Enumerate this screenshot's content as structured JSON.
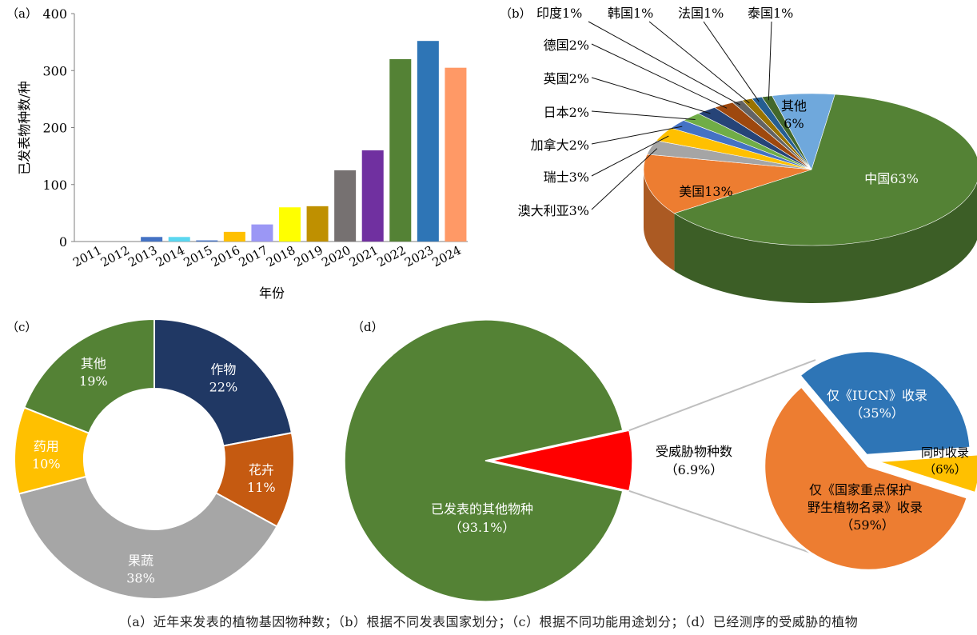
{
  "caption": "（a）近年来发表的植物基因物种数；（b）根据不同发表国家划分；（c）根据不同功能用途划分；（d）已经测序的受威胁的植物",
  "chart_data": [
    {
      "panel": "（a）",
      "type": "bar",
      "xlabel": "年份",
      "ylabel": "已发表物种数/种",
      "ylim": [
        0,
        400
      ],
      "yticks": [
        0,
        100,
        200,
        300,
        400
      ],
      "categories": [
        "2011",
        "2012",
        "2013",
        "2014",
        "2015",
        "2016",
        "2017",
        "2018",
        "2019",
        "2020",
        "2021",
        "2022",
        "2023",
        "2024"
      ],
      "values": [
        0,
        0,
        8,
        8,
        2,
        17,
        30,
        60,
        62,
        125,
        160,
        320,
        352,
        305
      ],
      "colors": [
        "#4472c4",
        "#4472c4",
        "#4472c4",
        "#5bd7f0",
        "#4472c4",
        "#ffc000",
        "#9b97f5",
        "#ffff00",
        "#bf9000",
        "#767171",
        "#7030a0",
        "#548235",
        "#2e75b6",
        "#ff9966"
      ]
    },
    {
      "panel": "（b）",
      "type": "pie",
      "labels": [
        "中国63%",
        "美国13%",
        "澳大利亚3%",
        "瑞士3%",
        "加拿大2%",
        "日本2%",
        "英国2%",
        "德国2%",
        "印度1%",
        "韩国1%",
        "法国1%",
        "泰国1%",
        "其他",
        "6%"
      ],
      "slices": [
        {
          "name": "中国",
          "label": "中国63%",
          "value": 63,
          "color": "#548235"
        },
        {
          "name": "美国",
          "label": "美国13%",
          "value": 13,
          "color": "#ed7d31"
        },
        {
          "name": "澳大利亚",
          "label": "澳大利亚3%",
          "value": 3,
          "color": "#a5a5a5"
        },
        {
          "name": "瑞士",
          "label": "瑞士3%",
          "value": 3,
          "color": "#ffc000"
        },
        {
          "name": "加拿大",
          "label": "加拿大2%",
          "value": 2,
          "color": "#4472c4"
        },
        {
          "name": "日本",
          "label": "日本2%",
          "value": 2,
          "color": "#70ad47"
        },
        {
          "name": "英国",
          "label": "英国2%",
          "value": 2,
          "color": "#264478"
        },
        {
          "name": "德国",
          "label": "德国2%",
          "value": 2,
          "color": "#9e480e"
        },
        {
          "name": "印度",
          "label": "印度1%",
          "value": 1,
          "color": "#636363"
        },
        {
          "name": "韩国",
          "label": "韩国1%",
          "value": 1,
          "color": "#997300"
        },
        {
          "name": "法国",
          "label": "法国1%",
          "value": 1,
          "color": "#255e91"
        },
        {
          "name": "泰国",
          "label": "泰国1%",
          "value": 1,
          "color": "#43682b"
        },
        {
          "name": "其他",
          "label": "其他",
          "label2": "6%",
          "value": 6,
          "color": "#6fa8dc"
        }
      ]
    },
    {
      "panel": "（c）",
      "type": "pie",
      "slices": [
        {
          "name": "作物",
          "pct": "22%",
          "value": 22,
          "color": "#203864"
        },
        {
          "name": "花卉",
          "pct": "11%",
          "value": 11,
          "color": "#c55a11"
        },
        {
          "name": "果蔬",
          "pct": "38%",
          "value": 38,
          "color": "#a6a6a6"
        },
        {
          "name": "药用",
          "pct": "10%",
          "value": 10,
          "color": "#ffc000"
        },
        {
          "name": "其他",
          "pct": "19%",
          "value": 19,
          "color": "#548235"
        }
      ]
    },
    {
      "panel": "（d）",
      "type": "pie",
      "main": [
        {
          "name": "已发表的其他物种",
          "pct": "（93.1%）",
          "value": 93.1,
          "color": "#548235"
        },
        {
          "name": "受威胁物种数",
          "pct": "（6.9%）",
          "value": 6.9,
          "color": "#ff0000"
        }
      ],
      "breakdown": [
        {
          "name": "仅《IUCN》收录",
          "pct": "（35%）",
          "value": 35,
          "color": "#2e75b6"
        },
        {
          "name": "同时收录",
          "pct": "（6%）",
          "value": 6,
          "color": "#ffc000"
        },
        {
          "name": "仅《国家重点保护",
          "name2": "野生植物名录》收录",
          "pct": "（59%）",
          "value": 59,
          "color": "#ed7d31"
        }
      ]
    }
  ]
}
